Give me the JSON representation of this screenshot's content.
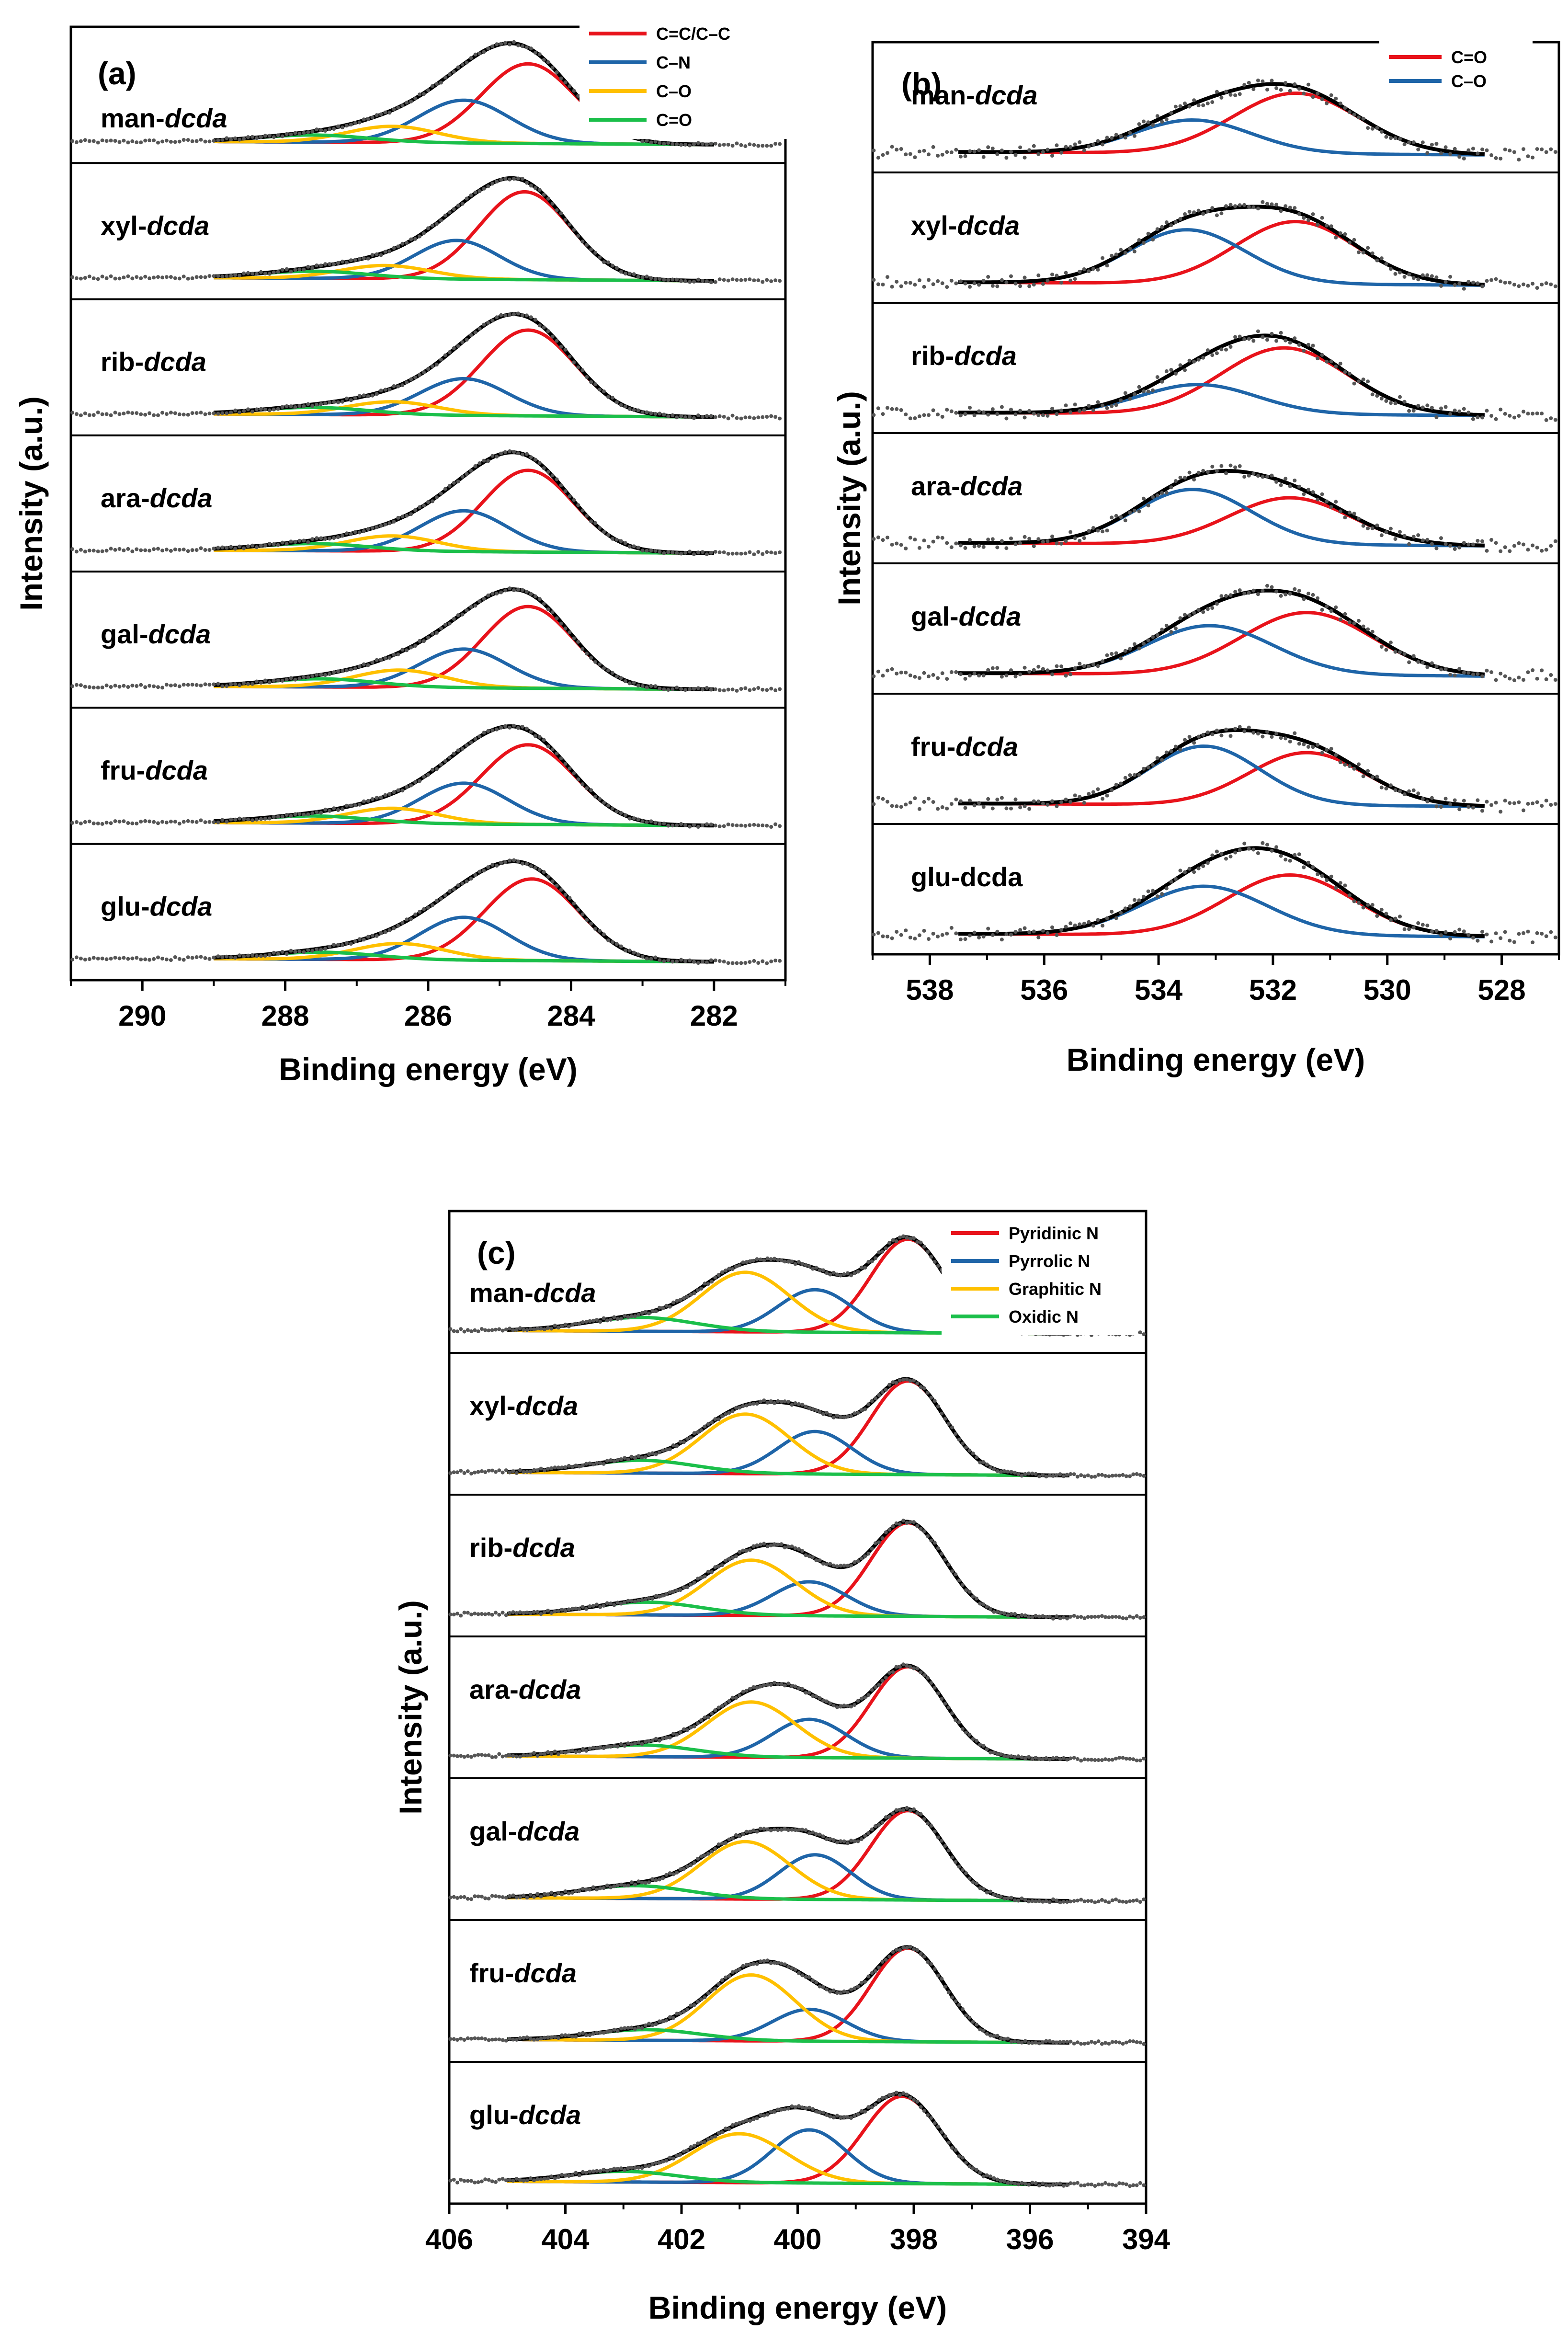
{
  "chart_data": [
    {
      "type": "line",
      "panel_label": "(a)",
      "xlabel": "Binding energy (eV)",
      "ylabel": "Intensity (a.u.)",
      "xlim": [
        291,
        281
      ],
      "x_ticks": [
        290,
        288,
        286,
        284,
        282
      ],
      "samples": [
        {
          "prefix": "man-",
          "suffix": "dcda"
        },
        {
          "prefix": "xyl-",
          "suffix": "dcda"
        },
        {
          "prefix": "rib-",
          "suffix": "dcda"
        },
        {
          "prefix": "ara-",
          "suffix": "dcda"
        },
        {
          "prefix": "gal-",
          "suffix": "dcda"
        },
        {
          "prefix": "fru-",
          "suffix": "dcda"
        },
        {
          "prefix": "glu-",
          "suffix": "dcda"
        }
      ],
      "fit_range": [
        289,
        282
      ],
      "data_range": [
        291,
        281
      ],
      "components": [
        {
          "name": "C=C/C–C",
          "color": "#e8131b"
        },
        {
          "name": "C–N",
          "color": "#1f65a8"
        },
        {
          "name": "C–O",
          "color": "#ffc000"
        },
        {
          "name": "C=O",
          "color": "#1bbf4a"
        }
      ],
      "series": [
        {
          "sample": "man-dcda",
          "peaks": [
            {
              "center": 284.6,
              "height": 0.78,
              "fwhm": 1.55
            },
            {
              "center": 285.5,
              "height": 0.42,
              "fwhm": 1.5
            },
            {
              "center": 286.5,
              "height": 0.16,
              "fwhm": 1.5
            },
            {
              "center": 287.6,
              "height": 0.07,
              "fwhm": 1.8
            }
          ]
        },
        {
          "sample": "xyl-dcda",
          "peaks": [
            {
              "center": 284.65,
              "height": 0.86,
              "fwhm": 1.5
            },
            {
              "center": 285.6,
              "height": 0.38,
              "fwhm": 1.4
            },
            {
              "center": 286.6,
              "height": 0.13,
              "fwhm": 1.5
            },
            {
              "center": 287.6,
              "height": 0.07,
              "fwhm": 1.8
            }
          ]
        },
        {
          "sample": "rib-dcda",
          "peaks": [
            {
              "center": 284.6,
              "height": 0.84,
              "fwhm": 1.55
            },
            {
              "center": 285.5,
              "height": 0.36,
              "fwhm": 1.45
            },
            {
              "center": 286.5,
              "height": 0.13,
              "fwhm": 1.5
            },
            {
              "center": 287.6,
              "height": 0.07,
              "fwhm": 1.8
            }
          ]
        },
        {
          "sample": "ara-dcda",
          "peaks": [
            {
              "center": 284.6,
              "height": 0.8,
              "fwhm": 1.5
            },
            {
              "center": 285.5,
              "height": 0.4,
              "fwhm": 1.45
            },
            {
              "center": 286.5,
              "height": 0.15,
              "fwhm": 1.5
            },
            {
              "center": 287.6,
              "height": 0.07,
              "fwhm": 1.8
            }
          ]
        },
        {
          "sample": "gal-dcda",
          "peaks": [
            {
              "center": 284.6,
              "height": 0.8,
              "fwhm": 1.5
            },
            {
              "center": 285.5,
              "height": 0.38,
              "fwhm": 1.45
            },
            {
              "center": 286.4,
              "height": 0.17,
              "fwhm": 1.5
            },
            {
              "center": 287.5,
              "height": 0.08,
              "fwhm": 1.8
            }
          ]
        },
        {
          "sample": "fru-dcda",
          "peaks": [
            {
              "center": 284.6,
              "height": 0.78,
              "fwhm": 1.55
            },
            {
              "center": 285.5,
              "height": 0.4,
              "fwhm": 1.45
            },
            {
              "center": 286.5,
              "height": 0.15,
              "fwhm": 1.5
            },
            {
              "center": 287.6,
              "height": 0.07,
              "fwhm": 1.8
            }
          ]
        },
        {
          "sample": "glu-dcda",
          "peaks": [
            {
              "center": 284.55,
              "height": 0.8,
              "fwhm": 1.55
            },
            {
              "center": 285.5,
              "height": 0.42,
              "fwhm": 1.45
            },
            {
              "center": 286.4,
              "height": 0.16,
              "fwhm": 1.5
            },
            {
              "center": 287.5,
              "height": 0.07,
              "fwhm": 1.8
            }
          ]
        }
      ]
    },
    {
      "type": "line",
      "panel_label": "(b)",
      "xlabel": "Binding energy (eV)",
      "ylabel": "Intensity (a.u.)",
      "xlim": [
        539,
        527
      ],
      "x_ticks": [
        538,
        536,
        534,
        532,
        530,
        528
      ],
      "samples": [
        {
          "prefix": "man-",
          "suffix": "dcda"
        },
        {
          "prefix": "xyl-",
          "suffix": "dcda"
        },
        {
          "prefix": "rib-",
          "suffix": "dcda"
        },
        {
          "prefix": "ara-",
          "suffix": "dcda"
        },
        {
          "prefix": "gal-",
          "suffix": "dcda"
        },
        {
          "prefix": "fru-",
          "suffix": "dcda"
        },
        {
          "prefix": "glu-dcda",
          "suffix": ""
        }
      ],
      "fit_range": [
        537.5,
        528.3
      ],
      "data_range": [
        539,
        527
      ],
      "components": [
        {
          "name": "C=O",
          "color": "#e8131b"
        },
        {
          "name": "C–O",
          "color": "#1f65a8"
        }
      ],
      "series": [
        {
          "sample": "man-dcda",
          "peaks": [
            {
              "center": 531.6,
              "height": 0.62,
              "fwhm": 2.6
            },
            {
              "center": 533.4,
              "height": 0.34,
              "fwhm": 2.4
            }
          ]
        },
        {
          "sample": "xyl-dcda",
          "peaks": [
            {
              "center": 531.6,
              "height": 0.64,
              "fwhm": 2.5
            },
            {
              "center": 533.5,
              "height": 0.55,
              "fwhm": 2.4
            }
          ]
        },
        {
          "sample": "rib-dcda",
          "peaks": [
            {
              "center": 531.8,
              "height": 0.68,
              "fwhm": 2.6
            },
            {
              "center": 533.3,
              "height": 0.3,
              "fwhm": 2.4
            }
          ]
        },
        {
          "sample": "ara-dcda",
          "peaks": [
            {
              "center": 531.7,
              "height": 0.48,
              "fwhm": 2.5
            },
            {
              "center": 533.4,
              "height": 0.56,
              "fwhm": 2.4
            }
          ]
        },
        {
          "sample": "gal-dcda",
          "peaks": [
            {
              "center": 531.4,
              "height": 0.64,
              "fwhm": 2.7
            },
            {
              "center": 533.1,
              "height": 0.5,
              "fwhm": 2.6
            }
          ]
        },
        {
          "sample": "fru-dcda",
          "peaks": [
            {
              "center": 531.4,
              "height": 0.54,
              "fwhm": 2.4
            },
            {
              "center": 533.2,
              "height": 0.6,
              "fwhm": 2.3
            }
          ]
        },
        {
          "sample": "glu-dcda",
          "peaks": [
            {
              "center": 531.7,
              "height": 0.62,
              "fwhm": 2.6
            },
            {
              "center": 533.2,
              "height": 0.5,
              "fwhm": 2.6
            }
          ]
        }
      ]
    },
    {
      "type": "line",
      "panel_label": "(c)",
      "xlabel": "Binding energy (eV)",
      "ylabel": "Intensity (a.u.)",
      "xlim": [
        406,
        394
      ],
      "x_ticks": [
        406,
        404,
        402,
        400,
        398,
        396,
        394
      ],
      "samples": [
        {
          "prefix": "man-",
          "suffix": "dcda"
        },
        {
          "prefix": "xyl-",
          "suffix": "dcda"
        },
        {
          "prefix": "rib-",
          "suffix": "dcda"
        },
        {
          "prefix": "ara-",
          "suffix": "dcda"
        },
        {
          "prefix": "gal-",
          "suffix": "dcda"
        },
        {
          "prefix": "fru-",
          "suffix": "dcda"
        },
        {
          "prefix": "glu-",
          "suffix": "dcda"
        }
      ],
      "fit_range": [
        405,
        395.3
      ],
      "data_range": [
        406,
        394
      ],
      "components": [
        {
          "name": "Pyridinic N",
          "color": "#e8131b"
        },
        {
          "name": "Pyrrolic N",
          "color": "#1f65a8"
        },
        {
          "name": "Graphitic N",
          "color": "#ffc000"
        },
        {
          "name": "Oxidic N",
          "color": "#1bbf4a"
        }
      ],
      "series": [
        {
          "sample": "man-dcda",
          "peaks": [
            {
              "center": 398.1,
              "height": 0.88,
              "fwhm": 1.5
            },
            {
              "center": 399.7,
              "height": 0.4,
              "fwhm": 1.5
            },
            {
              "center": 400.9,
              "height": 0.56,
              "fwhm": 1.8
            },
            {
              "center": 402.7,
              "height": 0.13,
              "fwhm": 2.2
            }
          ]
        },
        {
          "sample": "xyl-dcda",
          "peaks": [
            {
              "center": 398.1,
              "height": 0.88,
              "fwhm": 1.5
            },
            {
              "center": 399.7,
              "height": 0.4,
              "fwhm": 1.5
            },
            {
              "center": 400.9,
              "height": 0.56,
              "fwhm": 1.8
            },
            {
              "center": 402.7,
              "height": 0.12,
              "fwhm": 2.2
            }
          ]
        },
        {
          "sample": "rib-dcda",
          "peaks": [
            {
              "center": 398.1,
              "height": 0.88,
              "fwhm": 1.5
            },
            {
              "center": 399.8,
              "height": 0.32,
              "fwhm": 1.5
            },
            {
              "center": 400.8,
              "height": 0.52,
              "fwhm": 1.8
            },
            {
              "center": 402.6,
              "height": 0.12,
              "fwhm": 2.2
            }
          ]
        },
        {
          "sample": "ara-dcda",
          "peaks": [
            {
              "center": 398.1,
              "height": 0.86,
              "fwhm": 1.5
            },
            {
              "center": 399.8,
              "height": 0.36,
              "fwhm": 1.5
            },
            {
              "center": 400.8,
              "height": 0.52,
              "fwhm": 1.8
            },
            {
              "center": 402.7,
              "height": 0.11,
              "fwhm": 2.2
            }
          ]
        },
        {
          "sample": "gal-dcda",
          "peaks": [
            {
              "center": 398.1,
              "height": 0.84,
              "fwhm": 1.5
            },
            {
              "center": 399.7,
              "height": 0.42,
              "fwhm": 1.45
            },
            {
              "center": 400.9,
              "height": 0.54,
              "fwhm": 1.8
            },
            {
              "center": 402.8,
              "height": 0.12,
              "fwhm": 2.2
            }
          ]
        },
        {
          "sample": "fru-dcda",
          "peaks": [
            {
              "center": 398.1,
              "height": 0.88,
              "fwhm": 1.5
            },
            {
              "center": 399.8,
              "height": 0.3,
              "fwhm": 1.5
            },
            {
              "center": 400.8,
              "height": 0.62,
              "fwhm": 1.8
            },
            {
              "center": 402.6,
              "height": 0.1,
              "fwhm": 2.2
            }
          ]
        },
        {
          "sample": "glu-dcda",
          "peaks": [
            {
              "center": 398.2,
              "height": 0.82,
              "fwhm": 1.55
            },
            {
              "center": 399.8,
              "height": 0.5,
              "fwhm": 1.5
            },
            {
              "center": 401.0,
              "height": 0.46,
              "fwhm": 1.9
            },
            {
              "center": 403.0,
              "height": 0.1,
              "fwhm": 2.2
            }
          ]
        }
      ]
    }
  ]
}
